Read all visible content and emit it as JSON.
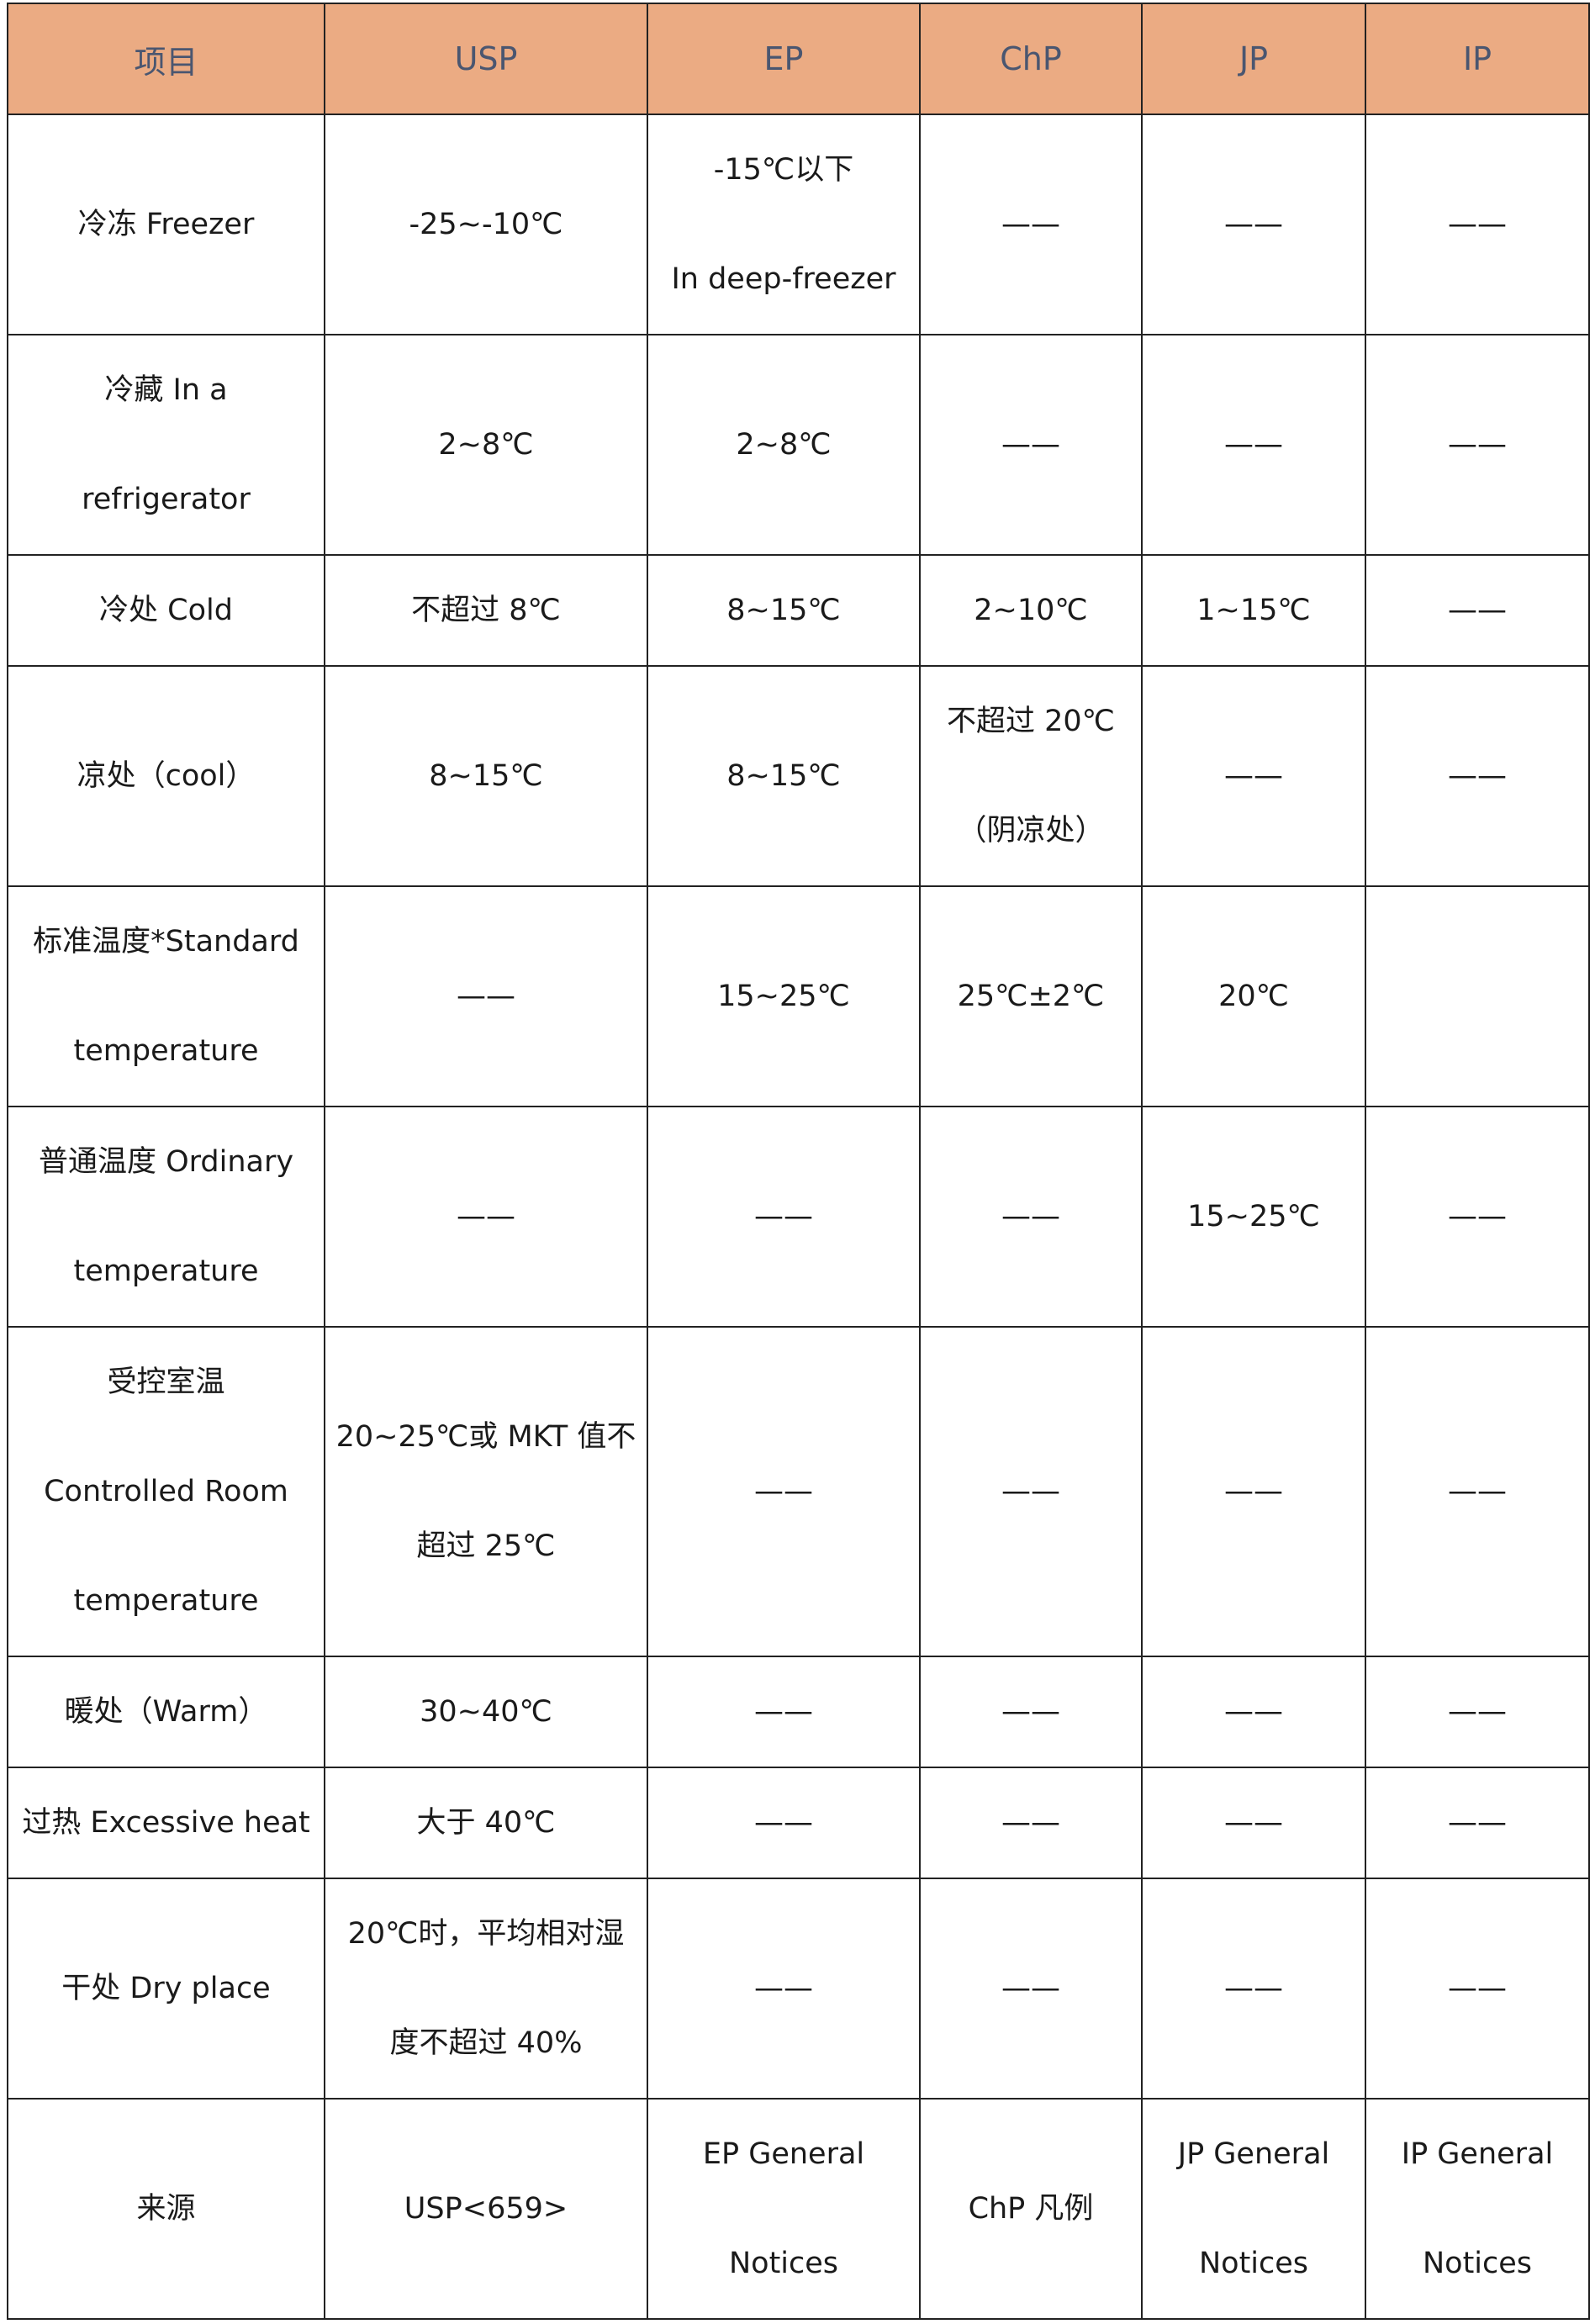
{
  "header_color": "#ebab83",
  "columns": [
    "项目",
    "USP",
    "EP",
    "ChP",
    "JP",
    "IP"
  ],
  "rows": [
    {
      "lines": 2,
      "cells": [
        [
          "冷冻 Freezer"
        ],
        [
          "-25~-10℃"
        ],
        [
          "-15℃以下",
          "In deep-freezer"
        ],
        [
          "——"
        ],
        [
          "——"
        ],
        [
          "——"
        ]
      ]
    },
    {
      "lines": 2,
      "cells": [
        [
          "冷藏 In a",
          "refrigerator"
        ],
        [
          "2~8℃"
        ],
        [
          "2~8℃"
        ],
        [
          "——"
        ],
        [
          "——"
        ],
        [
          "——"
        ]
      ]
    },
    {
      "lines": 1,
      "cells": [
        [
          "冷处 Cold"
        ],
        [
          "不超过 8℃"
        ],
        [
          "8~15℃"
        ],
        [
          "2~10℃"
        ],
        [
          "1~15℃"
        ],
        [
          "——"
        ]
      ]
    },
    {
      "lines": 2,
      "cells": [
        [
          "凉处（cool）"
        ],
        [
          "8~15℃"
        ],
        [
          "8~15℃"
        ],
        [
          "不超过 20℃",
          "（阴凉处）"
        ],
        [
          "——"
        ],
        [
          "——"
        ]
      ]
    },
    {
      "lines": 2,
      "cells": [
        [
          "标准温度*Standard",
          "temperature"
        ],
        [
          "——"
        ],
        [
          "15~25℃"
        ],
        [
          "25℃±2℃"
        ],
        [
          "20℃"
        ],
        []
      ]
    },
    {
      "lines": 2,
      "cells": [
        [
          "普通温度 Ordinary",
          "temperature"
        ],
        [
          "——"
        ],
        [
          "——"
        ],
        [
          "——"
        ],
        [
          "15~25℃"
        ],
        [
          "——"
        ]
      ]
    },
    {
      "lines": 3,
      "cells": [
        [
          "受控室温",
          "Controlled Room",
          "temperature"
        ],
        [
          "20~25℃或 MKT 值不",
          "超过 25℃"
        ],
        [
          "——"
        ],
        [
          "——"
        ],
        [
          "——"
        ],
        [
          "——"
        ]
      ]
    },
    {
      "lines": 1,
      "cells": [
        [
          "暖处（Warm）"
        ],
        [
          "30~40℃"
        ],
        [
          "——"
        ],
        [
          "——"
        ],
        [
          "——"
        ],
        [
          "——"
        ]
      ]
    },
    {
      "lines": 1,
      "cells": [
        [
          "过热 Excessive heat"
        ],
        [
          "大于 40℃"
        ],
        [
          "——"
        ],
        [
          "——"
        ],
        [
          "——"
        ],
        [
          "——"
        ]
      ]
    },
    {
      "lines": 2,
      "cells": [
        [
          "干处 Dry place"
        ],
        [
          "20℃时，平均相对湿",
          "度不超过 40%"
        ],
        [
          "——"
        ],
        [
          "——"
        ],
        [
          "——"
        ],
        [
          "——"
        ]
      ]
    },
    {
      "lines": 2,
      "cells": [
        [
          "来源"
        ],
        [
          "USP<659>"
        ],
        [
          "EP General",
          "Notices"
        ],
        [
          "ChP  凡例"
        ],
        [
          "JP General",
          "Notices"
        ],
        [
          "IP General",
          "Notices"
        ]
      ]
    }
  ]
}
